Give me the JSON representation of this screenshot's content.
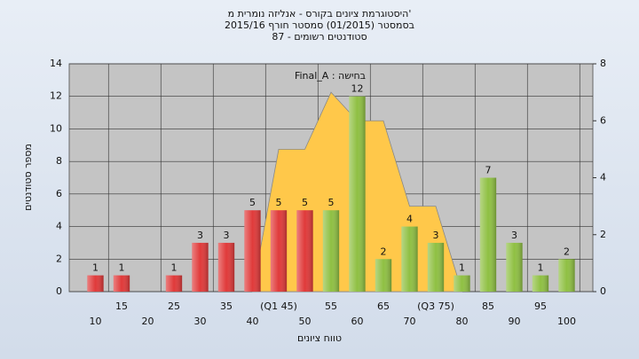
{
  "chart_data": {
    "type": "bar",
    "title": [
      "היסטוגרמת ציונים בקורס - אנליזה נומרית מ'",
      "בסמסטר  (01/2015)  סמסטר חורף  2015/16",
      "סטודנטים רשומים - 87"
    ],
    "annotation": "Final_A : בחישה",
    "x_label": "טווח ציונים",
    "y_label": "מספר סטודנטים",
    "categories": [
      "10",
      "15",
      "20",
      "25",
      "30",
      "35",
      "40",
      "(Q1 45)",
      "50",
      "55",
      "60",
      "65",
      "70",
      "(Q3 75)",
      "80",
      "85",
      "90",
      "95",
      "100"
    ],
    "values": [
      1,
      1,
      0,
      1,
      3,
      3,
      5,
      5,
      5,
      5,
      12,
      2,
      4,
      3,
      1,
      7,
      3,
      1,
      2
    ],
    "bar_colors": [
      "#e03a3a",
      "#e03a3a",
      "#e03a3a",
      "#e03a3a",
      "#e03a3a",
      "#e03a3a",
      "#e03a3a",
      "#e03a3a",
      "#e03a3a",
      "#8fc043",
      "#8fc043",
      "#8fc043",
      "#8fc043",
      "#8fc043",
      "#8fc043",
      "#8fc043",
      "#8fc043",
      "#8fc043",
      "#8fc043"
    ],
    "area": {
      "color": "#ffc84a",
      "axis": "y2",
      "values": [
        null,
        null,
        null,
        null,
        null,
        null,
        0,
        5,
        5,
        7,
        6,
        6,
        3,
        3,
        0,
        null,
        null,
        null,
        null
      ]
    },
    "ylim": [
      0,
      14
    ],
    "yticks": [
      0,
      2,
      4,
      6,
      8,
      10,
      12,
      14
    ],
    "y2lim": [
      0,
      8
    ],
    "y2ticks": [
      0,
      2,
      4,
      6,
      8
    ],
    "grid": true
  }
}
